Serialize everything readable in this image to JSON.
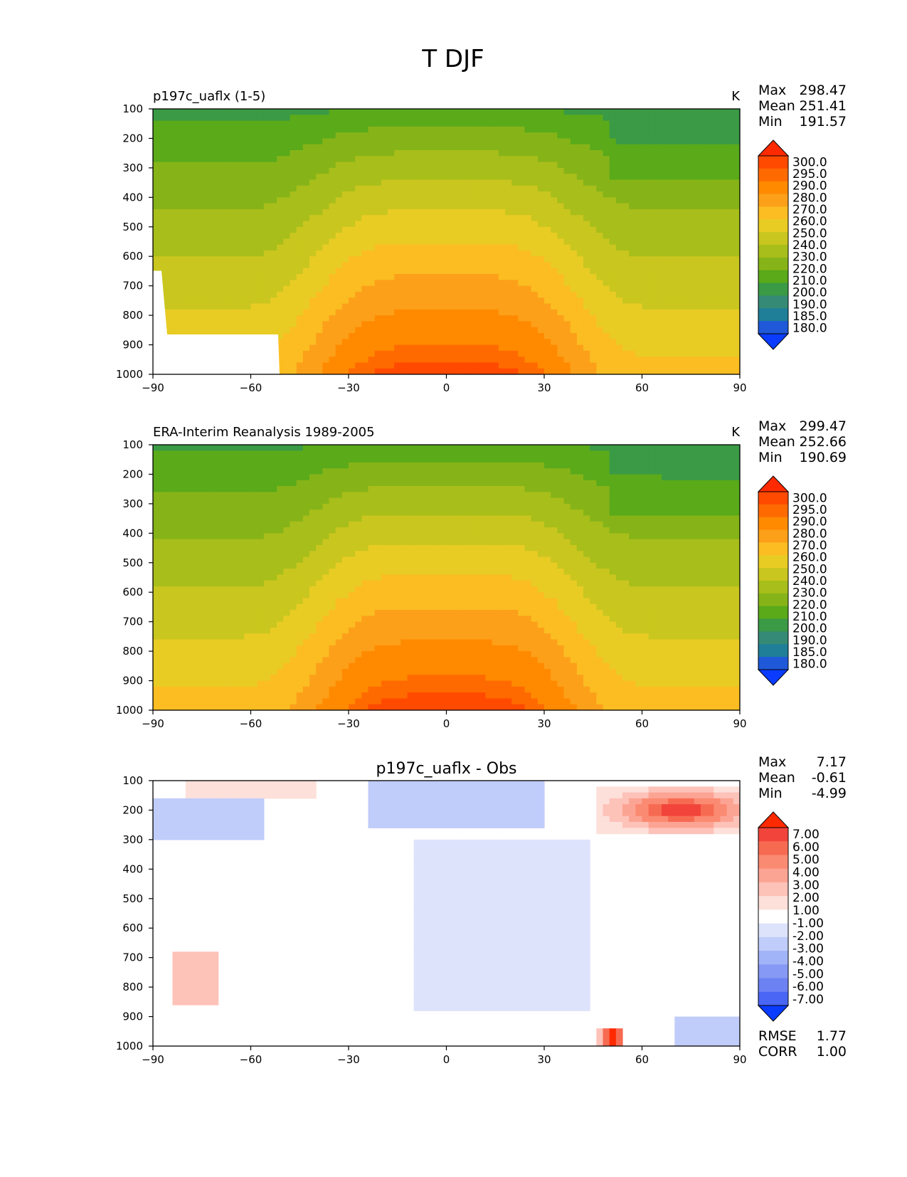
{
  "figure_title": "T DJF",
  "chart_data": [
    {
      "type": "heatmap",
      "title": "p197c_uaflx (1-5)",
      "units": "K",
      "stats": [
        {
          "label": "Max",
          "value": "298.47"
        },
        {
          "label": "Mean",
          "value": "251.41"
        },
        {
          "label": "Min",
          "value": "191.57"
        }
      ],
      "x_ticks": [
        "−90",
        "−60",
        "−30",
        "0",
        "30",
        "60",
        "90"
      ],
      "y_ticks": [
        "100",
        "200",
        "300",
        "400",
        "500",
        "600",
        "700",
        "800",
        "900",
        "1000"
      ],
      "xlim": [
        -90,
        90
      ],
      "ylim": [
        1000,
        100
      ],
      "colorbar_levels": [
        "300.0",
        "295.0",
        "290.0",
        "280.0",
        "270.0",
        "260.0",
        "250.0",
        "240.0",
        "230.0",
        "220.0",
        "210.0",
        "200.0",
        "190.0",
        "185.0",
        "180.0"
      ],
      "colorbar_colors": [
        "#ff2a00",
        "#ff4a00",
        "#ff6a00",
        "#ff8a00",
        "#fca01a",
        "#fbbd22",
        "#e8cc24",
        "#c9c61f",
        "#a8be1a",
        "#86b418",
        "#5aaa1a",
        "#3a9a45",
        "#358a76",
        "#1f7f98",
        "#1f58d8",
        "#0a3cff"
      ],
      "orography": true
    },
    {
      "type": "heatmap",
      "title": "ERA-Interim Reanalysis 1989-2005",
      "units": "K",
      "stats": [
        {
          "label": "Max",
          "value": "299.47"
        },
        {
          "label": "Mean",
          "value": "252.66"
        },
        {
          "label": "Min",
          "value": "190.69"
        }
      ],
      "x_ticks": [
        "−90",
        "−60",
        "−30",
        "0",
        "30",
        "60",
        "90"
      ],
      "y_ticks": [
        "100",
        "200",
        "300",
        "400",
        "500",
        "600",
        "700",
        "800",
        "900",
        "1000"
      ],
      "xlim": [
        -90,
        90
      ],
      "ylim": [
        1000,
        100
      ],
      "colorbar_levels": [
        "300.0",
        "295.0",
        "290.0",
        "280.0",
        "270.0",
        "260.0",
        "250.0",
        "240.0",
        "230.0",
        "220.0",
        "210.0",
        "200.0",
        "190.0",
        "185.0",
        "180.0"
      ],
      "colorbar_colors": [
        "#ff2a00",
        "#ff4a00",
        "#ff6a00",
        "#ff8a00",
        "#fca01a",
        "#fbbd22",
        "#e8cc24",
        "#c9c61f",
        "#a8be1a",
        "#86b418",
        "#5aaa1a",
        "#3a9a45",
        "#358a76",
        "#1f7f98",
        "#1f58d8",
        "#0a3cff"
      ],
      "orography": false
    },
    {
      "type": "heatmap",
      "title": "p197c_uaflx - Obs",
      "units": "",
      "stats": [
        {
          "label": "Max",
          "value": "7.17"
        },
        {
          "label": "Mean",
          "value": "-0.61"
        },
        {
          "label": "Min",
          "value": "-4.99"
        }
      ],
      "x_ticks": [
        "−90",
        "−60",
        "−30",
        "0",
        "30",
        "60",
        "90"
      ],
      "y_ticks": [
        "100",
        "200",
        "300",
        "400",
        "500",
        "600",
        "700",
        "800",
        "900",
        "1000"
      ],
      "xlim": [
        -90,
        90
      ],
      "ylim": [
        1000,
        100
      ],
      "colorbar_levels": [
        "7.00",
        "6.00",
        "5.00",
        "4.00",
        "3.00",
        "2.00",
        "1.00",
        "-1.00",
        "-2.00",
        "-3.00",
        "-4.00",
        "-5.00",
        "-6.00",
        "-7.00"
      ],
      "colorbar_colors": [
        "#ff2a00",
        "#f2443a",
        "#f76a52",
        "#fb8a72",
        "#fca494",
        "#fdc2b8",
        "#fde0da",
        "#ffffff",
        "#dde3fb",
        "#c0ccfa",
        "#a2b4f8",
        "#8599f5",
        "#6c82f3",
        "#4a66f5",
        "#0a3cff"
      ],
      "rmse": {
        "label": "RMSE",
        "value": "1.77"
      },
      "corr": {
        "label": "CORR",
        "value": "1.00"
      },
      "orography": true
    }
  ]
}
